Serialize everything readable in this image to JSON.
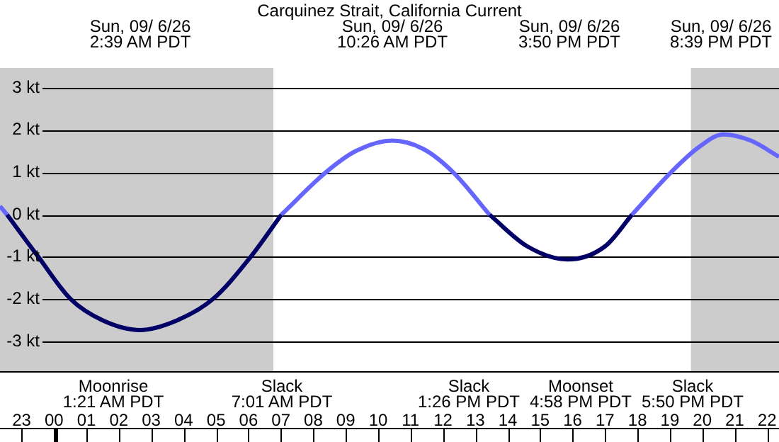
{
  "chart_data": {
    "type": "line",
    "title": "Carquinez Strait, California Current",
    "x": [
      "--09-05T22:20",
      "--09-05T22:33",
      "--09-05T23:31",
      "--09-06T00:31",
      "--09-06T01:30",
      "--09-06T02:39",
      "--09-06T03:48",
      "--09-06T04:54",
      "--09-06T06:04",
      "--09-06T07:01",
      "--09-06T08:23",
      "--09-06T09:18",
      "--09-06T10:26",
      "--09-06T11:24",
      "--09-06T12:19",
      "--09-06T13:26",
      "--09-06T14:36",
      "--09-06T15:50",
      "--09-06T17:00",
      "--09-06T17:50",
      "--09-06T19:02",
      "--09-06T19:54",
      "--09-06T20:39",
      "--09-06T21:30",
      "--09-06T22:22"
    ],
    "series": [
      {
        "color": "#6666ff",
        "values": [
          0.2,
          0,
          null,
          null,
          null,
          null,
          null,
          null,
          null,
          0,
          1,
          1.5,
          1.75,
          1.55,
          1,
          0,
          null,
          null,
          null,
          0,
          1,
          1.6,
          1.9,
          1.75,
          1.37
        ]
      },
      {
        "color": "#000066",
        "values": [
          null,
          0,
          -1,
          -2,
          -2.5,
          -2.73,
          -2.5,
          -2,
          -1,
          0,
          null,
          null,
          null,
          null,
          null,
          0,
          -0.75,
          -1.06,
          -0.75,
          0,
          null,
          null,
          null,
          null,
          null
        ]
      }
    ],
    "xlim": [
      "--09-05T22:20",
      "--09-06T22:22"
    ],
    "xticks": [
      {
        "value": "--09-05T23:00",
        "label": "23"
      },
      {
        "value": "--09-06T00:00",
        "label": "00"
      },
      {
        "value": "--09-06T01:00",
        "label": "01"
      },
      {
        "value": "--09-06T02:00",
        "label": "02"
      },
      {
        "value": "--09-06T03:00",
        "label": "03"
      },
      {
        "value": "--09-06T04:00",
        "label": "04"
      },
      {
        "value": "--09-06T05:00",
        "label": "05"
      },
      {
        "value": "--09-06T06:00",
        "label": "06"
      },
      {
        "value": "--09-06T07:00",
        "label": "07"
      },
      {
        "value": "--09-06T08:00",
        "label": "08"
      },
      {
        "value": "--09-06T09:00",
        "label": "09"
      },
      {
        "value": "--09-06T10:00",
        "label": "10"
      },
      {
        "value": "--09-06T11:00",
        "label": "11"
      },
      {
        "value": "--09-06T12:00",
        "label": "12"
      },
      {
        "value": "--09-06T13:00",
        "label": "13"
      },
      {
        "value": "--09-06T14:00",
        "label": "14"
      },
      {
        "value": "--09-06T15:00",
        "label": "15"
      },
      {
        "value": "--09-06T16:00",
        "label": "16"
      },
      {
        "value": "--09-06T17:00",
        "label": "17"
      },
      {
        "value": "--09-06T18:00",
        "label": "18"
      },
      {
        "value": "--09-06T19:00",
        "label": "19"
      },
      {
        "value": "--09-06T20:00",
        "label": "20"
      },
      {
        "value": "--09-06T21:00",
        "label": "21"
      },
      {
        "value": "--09-06T22:00",
        "label": "22"
      }
    ],
    "ylim": [
      -3,
      3
    ],
    "yticks": [
      {
        "value": -3,
        "label": "-3 kt"
      },
      {
        "value": -2,
        "label": "-2 kt"
      },
      {
        "value": -1,
        "label": "-1 kt"
      },
      {
        "value": 0,
        "label": "0 kt"
      },
      {
        "value": 1,
        "label": "1 kt"
      },
      {
        "value": 2,
        "label": "2 kt"
      },
      {
        "value": 3,
        "label": "3 kt"
      }
    ],
    "grid": "y",
    "bands": [
      {
        "axis": "x",
        "from": "--09-05T22:20",
        "to": "--09-06T06:46",
        "color": "#cccccc"
      },
      {
        "axis": "x",
        "from": "--09-06T19:39",
        "to": "--09-06T22:22",
        "color": "#cccccc"
      }
    ],
    "annotations": [
      "Sun, 09/ 6/26\n2:39 AM PDT",
      "Sun, 09/ 6/26\n10:26 AM PDT",
      "Sun, 09/ 6/26\n3:50 PM PDT",
      "Sun, 09/ 6/26\n8:39 PM PDT",
      "Moonrise\n1:21 AM PDT",
      "Slack\n7:01 AM PDT",
      "Slack\n1:26 PM PDT",
      "Moonset\n4:58 PM PDT",
      "Slack\n5:50 PM PDT"
    ]
  }
}
